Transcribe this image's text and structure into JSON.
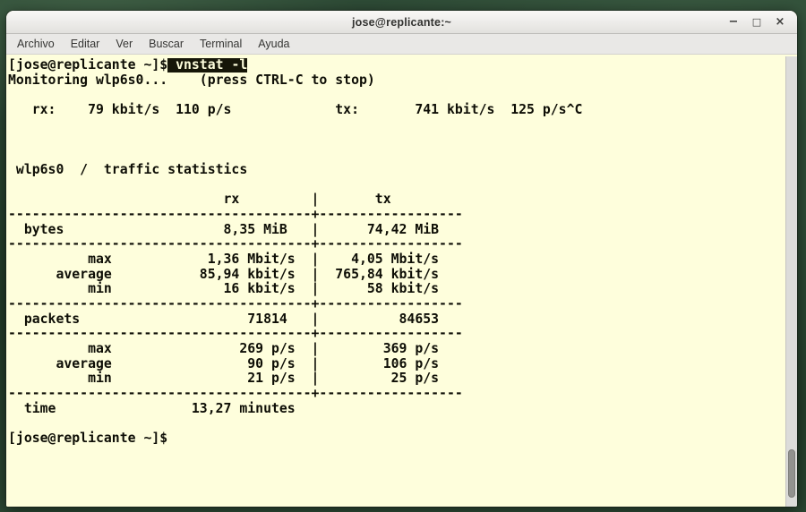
{
  "window": {
    "title": "jose@replicante:~",
    "controls": {
      "minimize": "−",
      "maximize": "□",
      "close": "×"
    }
  },
  "menubar": {
    "items": [
      "Archivo",
      "Editar",
      "Ver",
      "Buscar",
      "Terminal",
      "Ayuda"
    ]
  },
  "terminal": {
    "prompt": "[jose@replicante ~]$",
    "command": "vnstat -l",
    "lines": [
      {
        "segments": [
          {
            "t": "[jose@replicante ~]$"
          },
          {
            "t": " vnstat -l",
            "inv": true
          }
        ]
      },
      {
        "segments": [
          {
            "t": "Monitoring wlp6s0...    (press CTRL-C to stop)"
          }
        ]
      },
      {
        "segments": [
          {
            "t": ""
          }
        ]
      },
      {
        "segments": [
          {
            "t": "   rx:    79 kbit/s  110 p/s             tx:       741 kbit/s  125 p/s^C"
          }
        ]
      },
      {
        "segments": [
          {
            "t": ""
          }
        ]
      },
      {
        "segments": [
          {
            "t": ""
          }
        ]
      },
      {
        "segments": [
          {
            "t": ""
          }
        ]
      },
      {
        "segments": [
          {
            "t": " wlp6s0  /  traffic statistics"
          }
        ]
      },
      {
        "segments": [
          {
            "t": ""
          }
        ]
      },
      {
        "segments": [
          {
            "t": "                           rx         |       tx"
          }
        ]
      },
      {
        "segments": [
          {
            "t": "--------------------------------------+------------------"
          }
        ]
      },
      {
        "segments": [
          {
            "t": "  bytes                    8,35 MiB   |      74,42 MiB"
          }
        ]
      },
      {
        "segments": [
          {
            "t": "--------------------------------------+------------------"
          }
        ]
      },
      {
        "segments": [
          {
            "t": "          max            1,36 Mbit/s  |    4,05 Mbit/s"
          }
        ]
      },
      {
        "segments": [
          {
            "t": "      average           85,94 kbit/s  |  765,84 kbit/s"
          }
        ]
      },
      {
        "segments": [
          {
            "t": "          min              16 kbit/s  |      58 kbit/s"
          }
        ]
      },
      {
        "segments": [
          {
            "t": "--------------------------------------+------------------"
          }
        ]
      },
      {
        "segments": [
          {
            "t": "  packets                     71814   |          84653"
          }
        ]
      },
      {
        "segments": [
          {
            "t": "--------------------------------------+------------------"
          }
        ]
      },
      {
        "segments": [
          {
            "t": "          max                269 p/s  |        369 p/s"
          }
        ]
      },
      {
        "segments": [
          {
            "t": "      average                 90 p/s  |        106 p/s"
          }
        ]
      },
      {
        "segments": [
          {
            "t": "          min                 21 p/s  |         25 p/s"
          }
        ]
      },
      {
        "segments": [
          {
            "t": "--------------------------------------+------------------"
          }
        ]
      },
      {
        "segments": [
          {
            "t": "  time                 13,27 minutes"
          }
        ]
      },
      {
        "segments": [
          {
            "t": ""
          }
        ]
      },
      {
        "segments": [
          {
            "t": "[jose@replicante ~]$"
          }
        ]
      }
    ],
    "traffic_stats": {
      "interface": "wlp6s0",
      "monitoring_note": "(press CTRL-C to stop)",
      "live": {
        "rx_rate": "79 kbit/s",
        "rx_packets": "110 p/s",
        "tx_rate": "741 kbit/s",
        "tx_packets": "125 p/s"
      },
      "bytes": {
        "rx": "8,35 MiB",
        "tx": "74,42 MiB"
      },
      "rate": {
        "max": {
          "rx": "1,36 Mbit/s",
          "tx": "4,05 Mbit/s"
        },
        "average": {
          "rx": "85,94 kbit/s",
          "tx": "765,84 kbit/s"
        },
        "min": {
          "rx": "16 kbit/s",
          "tx": "58 kbit/s"
        }
      },
      "packets": {
        "rx": "71814",
        "tx": "84653"
      },
      "packet_rate": {
        "max": {
          "rx": "269 p/s",
          "tx": "369 p/s"
        },
        "average": {
          "rx": "90 p/s",
          "tx": "106 p/s"
        },
        "min": {
          "rx": "21 p/s",
          "tx": "25 p/s"
        }
      },
      "time": "13,27 minutes"
    }
  },
  "colors": {
    "desktop_green": "#2e4b36",
    "titlebar_bg": "#ececea",
    "menubar_bg": "#e9e8e6",
    "terminal_bg": "#fefedc",
    "terminal_fg": "#0e0e06",
    "selection_bg": "#161608",
    "selection_fg": "#fefedc",
    "scrollbar_thumb": "#92928f"
  }
}
